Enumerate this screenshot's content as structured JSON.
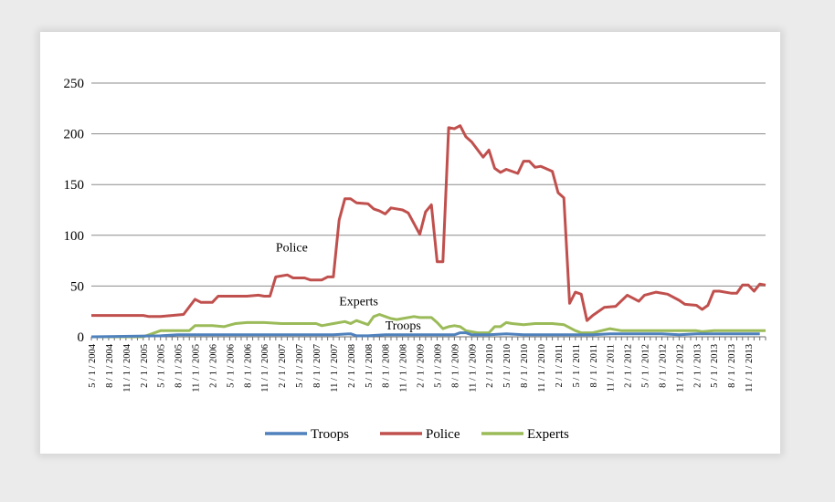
{
  "chart_data": {
    "type": "line",
    "title": "",
    "xlabel": "",
    "ylabel": "",
    "ylim": [
      0,
      250
    ],
    "yticks": [
      0,
      50,
      100,
      150,
      200,
      250
    ],
    "grid": true,
    "legend_position": "bottom",
    "x": [
      "5/1/2004",
      "8/1/2004",
      "11/1/2004",
      "2/1/2005",
      "5/1/2005",
      "8/1/2005",
      "11/1/2005",
      "2/1/2006",
      "5/1/2006",
      "8/1/2006",
      "11/1/2006",
      "2/1/2007",
      "5/1/2007",
      "8/1/2007",
      "11/1/2007",
      "2/1/2008",
      "5/1/2008",
      "8/1/2008",
      "11/1/2008",
      "2/1/2009",
      "5/1/2009",
      "8/1/2009",
      "11/1/2009",
      "2/1/2010",
      "5/1/2010",
      "8/1/2010",
      "11/1/2010",
      "2/1/2011",
      "5/1/2011",
      "8/1/2011",
      "11/1/2011",
      "2/1/2012",
      "5/1/2012",
      "8/1/2012",
      "11/1/2012",
      "2/1/2013",
      "5/1/2013",
      "8/1/2013",
      "11/1/2013"
    ],
    "x_labels": [
      "5 / 1 / 2004",
      "8 / 1 / 2004",
      "11 / 1 / 2004",
      "2 / 1 / 2005",
      "5 / 1 / 2005",
      "8 / 1 / 2005",
      "11 / 1 / 2005",
      "2 / 1 / 2006",
      "5 / 1 / 2006",
      "8 / 1 / 2006",
      "11 / 1 / 2006",
      "2 / 1 / 2007",
      "5 / 1 / 2007",
      "8 / 1 / 2007",
      "11 / 1 / 2007",
      "2 / 1 / 2008",
      "5 / 1 / 2008",
      "8 / 1 / 2008",
      "11 / 1 / 2008",
      "2 / 1 / 2009",
      "5 / 1 / 2009",
      "8 / 1 / 2009",
      "11 / 1 / 2009",
      "2 / 1 / 2010",
      "5 / 1 / 2010",
      "8 / 1 / 2010",
      "11 / 1 / 2010",
      "2 / 1 / 2011",
      "5 / 1 / 2011",
      "8 / 1 / 2011",
      "11 / 1 / 2011",
      "2 / 1 / 2012",
      "5 / 1 / 2012",
      "8 / 1 / 2012",
      "11 / 1 / 2012",
      "2 / 1 / 2013",
      "5 / 1 / 2013",
      "8 / 1 / 2013",
      "11 / 1 / 2013"
    ],
    "series": [
      {
        "name": "Troops",
        "color": "#4f81bd",
        "points": [
          [
            "5/1/2004",
            0
          ],
          [
            "5/1/2005",
            1
          ],
          [
            "8/1/2005",
            2
          ],
          [
            "11/1/2005",
            2
          ],
          [
            "2/1/2006",
            2
          ],
          [
            "5/1/2006",
            2
          ],
          [
            "8/1/2006",
            2
          ],
          [
            "11/1/2006",
            2
          ],
          [
            "2/1/2007",
            2
          ],
          [
            "5/1/2007",
            2
          ],
          [
            "8/1/2007",
            2
          ],
          [
            "11/1/2007",
            2
          ],
          [
            "2/1/2008",
            3
          ],
          [
            "3/1/2008",
            1
          ],
          [
            "5/1/2008",
            1
          ],
          [
            "8/1/2008",
            2
          ],
          [
            "11/1/2008",
            2
          ],
          [
            "2/1/2009",
            2
          ],
          [
            "5/1/2009",
            2
          ],
          [
            "8/1/2009",
            2
          ],
          [
            "9/1/2009",
            4
          ],
          [
            "10/1/2009",
            4
          ],
          [
            "11/1/2009",
            2
          ],
          [
            "2/1/2010",
            2
          ],
          [
            "5/1/2010",
            3
          ],
          [
            "8/1/2010",
            2
          ],
          [
            "11/1/2010",
            2
          ],
          [
            "2/1/2011",
            2
          ],
          [
            "5/1/2011",
            2
          ],
          [
            "8/1/2011",
            2
          ],
          [
            "11/1/2011",
            3
          ],
          [
            "2/1/2012",
            3
          ],
          [
            "5/1/2012",
            3
          ],
          [
            "8/1/2012",
            3
          ],
          [
            "11/1/2012",
            2
          ],
          [
            "2/1/2013",
            3
          ],
          [
            "5/1/2013",
            3
          ],
          [
            "8/1/2013",
            3
          ],
          [
            "11/1/2013",
            3
          ],
          [
            "1/1/2014",
            3
          ]
        ]
      },
      {
        "name": "Police",
        "color": "#c0504d",
        "points": [
          [
            "5/1/2004",
            21
          ],
          [
            "8/1/2004",
            21
          ],
          [
            "11/1/2004",
            21
          ],
          [
            "2/1/2005",
            21
          ],
          [
            "3/1/2005",
            20
          ],
          [
            "5/1/2005",
            20
          ],
          [
            "7/1/2005",
            21
          ],
          [
            "9/1/2005",
            22
          ],
          [
            "11/1/2005",
            37
          ],
          [
            "12/1/2005",
            34
          ],
          [
            "2/1/2006",
            34
          ],
          [
            "3/1/2006",
            40
          ],
          [
            "5/1/2006",
            40
          ],
          [
            "8/1/2006",
            40
          ],
          [
            "10/1/2006",
            41
          ],
          [
            "11/1/2006",
            40
          ],
          [
            "12/1/2006",
            40
          ],
          [
            "1/1/2007",
            59
          ],
          [
            "3/1/2007",
            61
          ],
          [
            "4/1/2007",
            58
          ],
          [
            "6/1/2007",
            58
          ],
          [
            "7/1/2007",
            56
          ],
          [
            "9/1/2007",
            56
          ],
          [
            "10/1/2007",
            59
          ],
          [
            "11/1/2007",
            59
          ],
          [
            "12/1/2007",
            115
          ],
          [
            "1/1/2008",
            136
          ],
          [
            "2/1/2008",
            136
          ],
          [
            "3/1/2008",
            132
          ],
          [
            "5/1/2008",
            131
          ],
          [
            "6/1/2008",
            126
          ],
          [
            "7/1/2008",
            124
          ],
          [
            "8/1/2008",
            121
          ],
          [
            "9/1/2008",
            127
          ],
          [
            "11/1/2008",
            125
          ],
          [
            "12/1/2008",
            122
          ],
          [
            "2/1/2009",
            101
          ],
          [
            "3/1/2009",
            123
          ],
          [
            "4/1/2009",
            130
          ],
          [
            "5/1/2009",
            74
          ],
          [
            "6/1/2009",
            74
          ],
          [
            "7/1/2009",
            206
          ],
          [
            "8/1/2009",
            205
          ],
          [
            "9/1/2009",
            208
          ],
          [
            "10/1/2009",
            197
          ],
          [
            "11/1/2009",
            192
          ],
          [
            "1/1/2010",
            177
          ],
          [
            "2/1/2010",
            184
          ],
          [
            "3/1/2010",
            166
          ],
          [
            "4/1/2010",
            162
          ],
          [
            "5/1/2010",
            165
          ],
          [
            "7/1/2010",
            161
          ],
          [
            "8/1/2010",
            173
          ],
          [
            "9/1/2010",
            173
          ],
          [
            "10/1/2010",
            167
          ],
          [
            "11/1/2010",
            168
          ],
          [
            "1/1/2011",
            163
          ],
          [
            "2/1/2011",
            142
          ],
          [
            "3/1/2011",
            137
          ],
          [
            "4/1/2011",
            33
          ],
          [
            "5/1/2011",
            44
          ],
          [
            "6/1/2011",
            42
          ],
          [
            "7/1/2011",
            16
          ],
          [
            "8/1/2011",
            21
          ],
          [
            "10/1/2011",
            29
          ],
          [
            "12/1/2011",
            30
          ],
          [
            "2/1/2012",
            41
          ],
          [
            "3/1/2012",
            38
          ],
          [
            "4/1/2012",
            35
          ],
          [
            "5/1/2012",
            41
          ],
          [
            "7/1/2012",
            44
          ],
          [
            "9/1/2012",
            42
          ],
          [
            "11/1/2012",
            36
          ],
          [
            "12/1/2012",
            32
          ],
          [
            "2/1/2013",
            31
          ],
          [
            "3/1/2013",
            27
          ],
          [
            "4/1/2013",
            31
          ],
          [
            "5/1/2013",
            45
          ],
          [
            "6/1/2013",
            45
          ],
          [
            "8/1/2013",
            43
          ],
          [
            "9/1/2013",
            43
          ],
          [
            "10/1/2013",
            51
          ],
          [
            "11/1/2013",
            51
          ],
          [
            "12/1/2013",
            45
          ],
          [
            "1/1/2014",
            52
          ],
          [
            "2/1/2014",
            51
          ]
        ]
      },
      {
        "name": "Experts",
        "color": "#9bbb59",
        "points": [
          [
            "5/1/2004",
            0
          ],
          [
            "2/1/2005",
            0
          ],
          [
            "5/1/2005",
            6
          ],
          [
            "8/1/2005",
            6
          ],
          [
            "10/1/2005",
            6
          ],
          [
            "11/1/2005",
            11
          ],
          [
            "2/1/2006",
            11
          ],
          [
            "4/1/2006",
            10
          ],
          [
            "6/1/2006",
            13
          ],
          [
            "8/1/2006",
            14
          ],
          [
            "11/1/2006",
            14
          ],
          [
            "2/1/2007",
            13
          ],
          [
            "5/1/2007",
            13
          ],
          [
            "8/1/2007",
            13
          ],
          [
            "9/1/2007",
            11
          ],
          [
            "11/1/2007",
            13
          ],
          [
            "1/1/2008",
            15
          ],
          [
            "2/1/2008",
            13
          ],
          [
            "3/1/2008",
            16
          ],
          [
            "5/1/2008",
            12
          ],
          [
            "6/1/2008",
            20
          ],
          [
            "7/1/2008",
            22
          ],
          [
            "8/1/2008",
            20
          ],
          [
            "9/1/2008",
            18
          ],
          [
            "10/1/2008",
            17
          ],
          [
            "11/1/2008",
            18
          ],
          [
            "1/1/2009",
            20
          ],
          [
            "2/1/2009",
            19
          ],
          [
            "4/1/2009",
            19
          ],
          [
            "5/1/2009",
            14
          ],
          [
            "6/1/2009",
            8
          ],
          [
            "7/1/2009",
            10
          ],
          [
            "8/1/2009",
            11
          ],
          [
            "9/1/2009",
            10
          ],
          [
            "10/1/2009",
            6
          ],
          [
            "12/1/2009",
            4
          ],
          [
            "2/1/2010",
            4
          ],
          [
            "3/1/2010",
            10
          ],
          [
            "4/1/2010",
            10
          ],
          [
            "5/1/2010",
            14
          ],
          [
            "6/1/2010",
            13
          ],
          [
            "8/1/2010",
            12
          ],
          [
            "10/1/2010",
            13
          ],
          [
            "11/1/2010",
            13
          ],
          [
            "1/1/2011",
            13
          ],
          [
            "3/1/2011",
            12
          ],
          [
            "5/1/2011",
            6
          ],
          [
            "6/1/2011",
            4
          ],
          [
            "8/1/2011",
            4
          ],
          [
            "11/1/2011",
            8
          ],
          [
            "1/1/2012",
            6
          ],
          [
            "2/1/2012",
            6
          ],
          [
            "5/1/2012",
            6
          ],
          [
            "8/1/2012",
            6
          ],
          [
            "11/1/2012",
            6
          ],
          [
            "1/1/2013",
            6
          ],
          [
            "2/1/2013",
            6
          ],
          [
            "3/1/2013",
            5
          ],
          [
            "5/1/2013",
            6
          ],
          [
            "8/1/2013",
            6
          ],
          [
            "11/1/2013",
            6
          ],
          [
            "2/1/2014",
            6
          ]
        ]
      }
    ],
    "annotations": [
      {
        "text": "Police",
        "x": "1/1/2007",
        "y": 84
      },
      {
        "text": "Experts",
        "x": "12/1/2007",
        "y": 31
      },
      {
        "text": "Troops",
        "x": "8/1/2008",
        "y": 7
      }
    ]
  }
}
